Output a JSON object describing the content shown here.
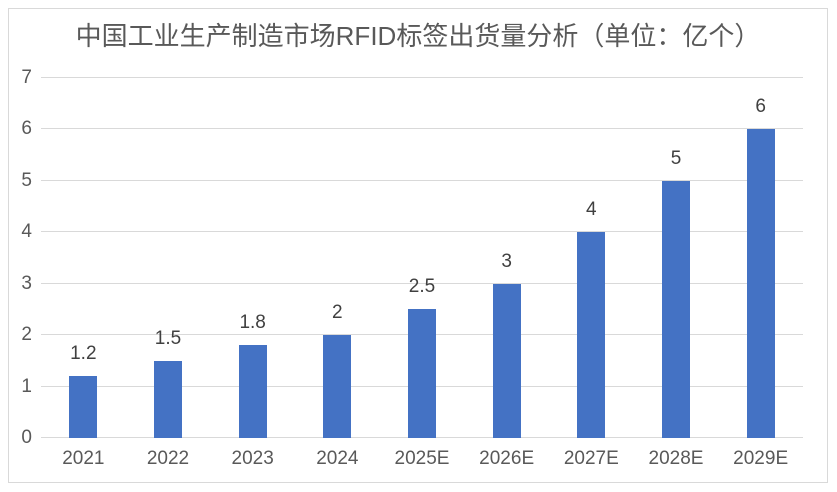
{
  "title": "中国工业生产制造市场RFID标签出货量分析（单位：亿个）",
  "chart_data": {
    "type": "bar",
    "title": "中国工业生产制造市场RFID标签出货量分析（单位：亿个）",
    "categories": [
      "2021",
      "2022",
      "2023",
      "2024",
      "2025E",
      "2026E",
      "2027E",
      "2028E",
      "2029E"
    ],
    "values": [
      1.2,
      1.5,
      1.8,
      2,
      2.5,
      3,
      4,
      5,
      6
    ],
    "data_labels": [
      "1.2",
      "1.5",
      "1.8",
      "2",
      "2.5",
      "3",
      "4",
      "5",
      "6"
    ],
    "xlabel": "",
    "ylabel": "",
    "ylim": [
      0,
      7
    ],
    "yticks": [
      "0",
      "1",
      "2",
      "3",
      "4",
      "5",
      "6",
      "7"
    ],
    "grid": true,
    "legend_position": "none",
    "bar_color": "#4472c4",
    "gridline_color": "#d9d9d9",
    "axis_tick_color": "#595959",
    "data_label_color": "#404040",
    "title_color": "#595959",
    "frame_border_color": "#d9d9d9"
  }
}
